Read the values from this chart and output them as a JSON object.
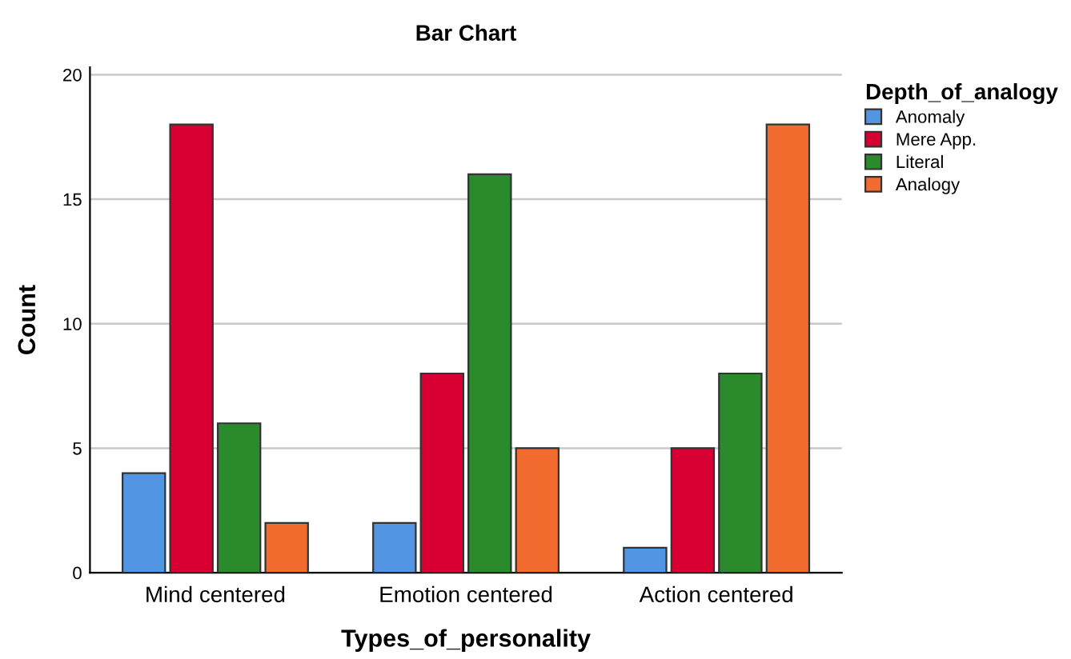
{
  "chart_data": {
    "type": "bar",
    "title": "Bar Chart",
    "xlabel": "Types_of_personality",
    "ylabel": "Count",
    "legend_title": "Depth_of_analogy",
    "categories": [
      "Mind centered",
      "Emotion centered",
      "Action centered"
    ],
    "series": [
      {
        "name": "Anomaly",
        "color": "#5195e3",
        "values": [
          4,
          2,
          1
        ]
      },
      {
        "name": "Mere App.",
        "color": "#d80032",
        "values": [
          18,
          8,
          5
        ]
      },
      {
        "name": "Literal",
        "color": "#2a8a2c",
        "values": [
          6,
          16,
          8
        ]
      },
      {
        "name": "Analogy",
        "color": "#f26b2f",
        "values": [
          2,
          5,
          18
        ]
      }
    ],
    "ylim": [
      0,
      20.3
    ],
    "yticks": [
      0,
      5,
      10,
      15,
      20
    ],
    "grid": "y",
    "legend": "top right"
  }
}
